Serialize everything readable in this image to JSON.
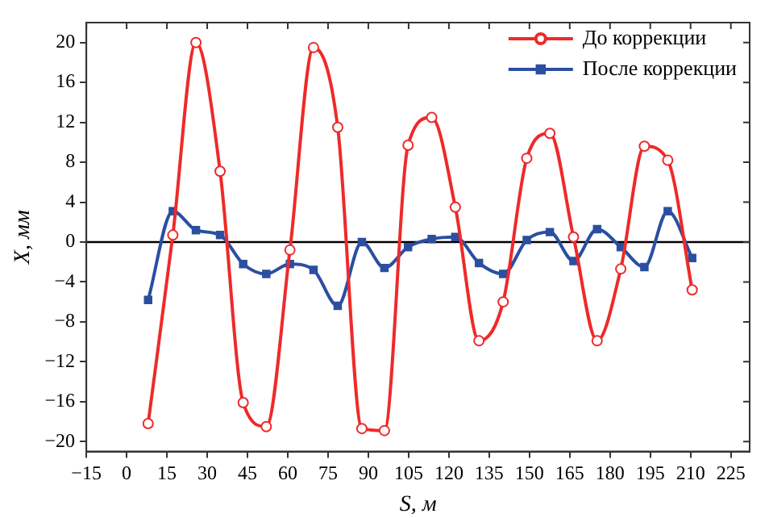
{
  "chart_data": {
    "type": "line",
    "xlabel": "S, м",
    "ylabel": "X, мм",
    "xlim": [
      -15,
      232
    ],
    "xticks": [
      -15,
      0,
      15,
      30,
      45,
      60,
      75,
      90,
      105,
      120,
      135,
      150,
      165,
      180,
      195,
      210,
      225
    ],
    "ylim": [
      -21,
      22
    ],
    "yticks": [
      -20,
      -16,
      -12,
      -8,
      -4,
      0,
      4,
      8,
      12,
      16,
      20
    ],
    "grid": false,
    "legend": "top right",
    "ref_lines": [
      {
        "axis": "y",
        "value": 0,
        "color": "#000000"
      }
    ],
    "x": [
      8.0,
      17.2,
      25.8,
      34.8,
      43.4,
      52.0,
      60.8,
      69.6,
      78.6,
      87.6,
      96.0,
      104.8,
      113.6,
      122.4,
      131.2,
      140.2,
      149.0,
      157.6,
      166.4,
      175.2,
      184.0,
      192.8,
      201.5,
      210.6
    ],
    "series": [
      {
        "name": "До коррекции",
        "color": "#ee2a2a",
        "marker": "circle",
        "values": [
          -18.2,
          0.7,
          20,
          7.1,
          -16.1,
          -18.5,
          -0.8,
          19.5,
          11.5,
          -18.7,
          -18.9,
          9.7,
          12.5,
          3.5,
          -9.9,
          -6,
          8.4,
          10.9,
          0.5,
          -9.9,
          -2.7,
          9.6,
          8.2,
          -4.8
        ]
      },
      {
        "name": "После коррекции",
        "color": "#2b4fa0",
        "marker": "square",
        "values": [
          -5.8,
          3.1,
          1.2,
          0.7,
          -2.2,
          -3.2,
          -2.2,
          -2.8,
          -6.4,
          0,
          -2.6,
          -0.5,
          0.3,
          0.5,
          -2.1,
          -3.2,
          0.2,
          1.0,
          -1.9,
          1.3,
          -0.5,
          -2.5,
          3.1,
          -1.6
        ]
      }
    ]
  }
}
